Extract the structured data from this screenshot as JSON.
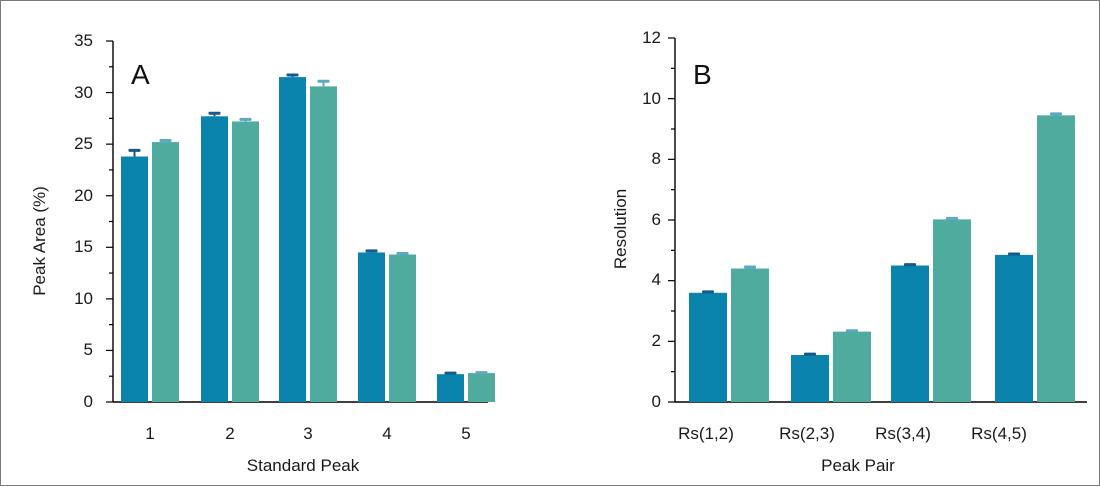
{
  "chart_data": [
    {
      "panel": "A",
      "type": "bar",
      "title": "",
      "xlabel": "Standard Peak",
      "ylabel": "Peak Area (%)",
      "categories": [
        "1",
        "2",
        "3",
        "4",
        "5"
      ],
      "ylim": [
        0,
        35
      ],
      "yticks": [
        "0",
        "5",
        "10",
        "15",
        "20",
        "25",
        "30",
        "35"
      ],
      "grid": false,
      "legend": "none",
      "series": [
        {
          "color": "#0a84ac",
          "cap_color": "#155a8a",
          "values": [
            23.8,
            27.7,
            31.5,
            14.5,
            2.7
          ],
          "errors": [
            0.6,
            0.3,
            0.2,
            0.15,
            0.1
          ]
        },
        {
          "color": "#4fab9e",
          "cap_color": "#5ba9c4",
          "values": [
            25.2,
            27.2,
            30.6,
            14.3,
            2.8
          ],
          "errors": [
            0.15,
            0.2,
            0.5,
            0.1,
            0.05
          ]
        }
      ]
    },
    {
      "panel": "B",
      "type": "bar",
      "title": "",
      "xlabel": "Peak Pair",
      "ylabel": "Resolution",
      "categories": [
        "Rs(1,2)",
        "Rs(2,3)",
        "Rs(3,4)",
        "Rs(4,5)"
      ],
      "ylim": [
        0,
        12
      ],
      "yticks": [
        "0",
        "2",
        "4",
        "6",
        "8",
        "10",
        "12"
      ],
      "grid": false,
      "legend": "none",
      "series": [
        {
          "color": "#0a84ac",
          "cap_color": "#155a8a",
          "values": [
            3.6,
            1.55,
            4.5,
            4.85
          ],
          "errors": [
            0.03,
            0.03,
            0.03,
            0.03
          ]
        },
        {
          "color": "#4fab9e",
          "cap_color": "#5ba9c4",
          "values": [
            4.4,
            2.32,
            6.02,
            9.45
          ],
          "errors": [
            0.05,
            0.03,
            0.03,
            0.05
          ]
        }
      ]
    }
  ]
}
